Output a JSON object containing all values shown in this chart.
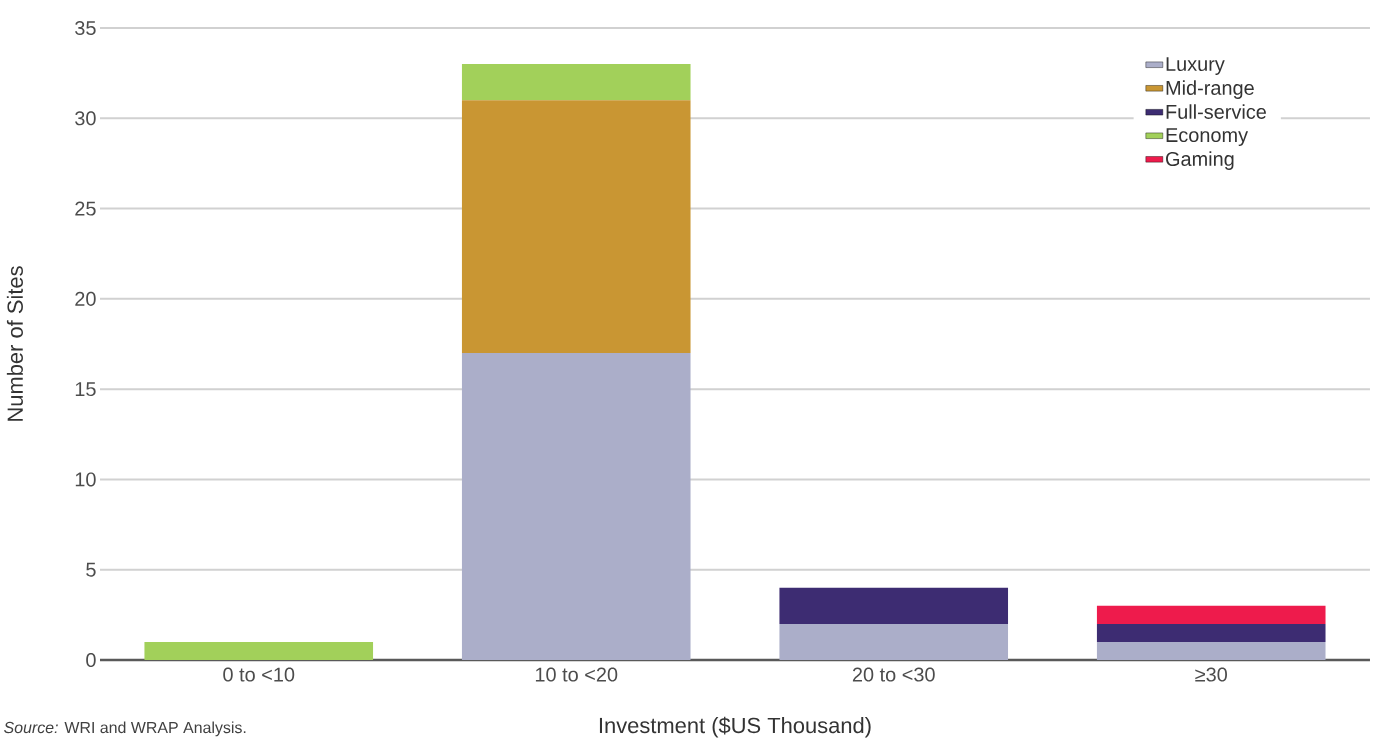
{
  "chart_data": {
    "type": "bar",
    "stacked": true,
    "xlabel": "Investment ($US Thousand)",
    "ylabel": "Number of Sites",
    "categories": [
      "0 to <10",
      "10 to <20",
      "20 to <30",
      "≥30"
    ],
    "series": [
      {
        "name": "Luxury",
        "color": "#abaec9",
        "values": [
          0,
          17,
          2,
          1
        ]
      },
      {
        "name": "Mid-range",
        "color": "#c99633",
        "values": [
          0,
          14,
          0,
          0
        ]
      },
      {
        "name": "Full-service",
        "color": "#3d2c72",
        "values": [
          0,
          0,
          2,
          1
        ]
      },
      {
        "name": "Economy",
        "color": "#a2d05a",
        "values": [
          1,
          2,
          0,
          0
        ]
      },
      {
        "name": "Gaming",
        "color": "#ee1b4c",
        "values": [
          0,
          0,
          0,
          1
        ]
      }
    ],
    "ylim": [
      0,
      35
    ],
    "yticks": [
      0,
      5,
      10,
      15,
      20,
      25,
      30,
      35
    ],
    "grid": "y",
    "legend": "top right",
    "annotations": [
      "*Source:* WRI and WRAP Analysis."
    ]
  }
}
